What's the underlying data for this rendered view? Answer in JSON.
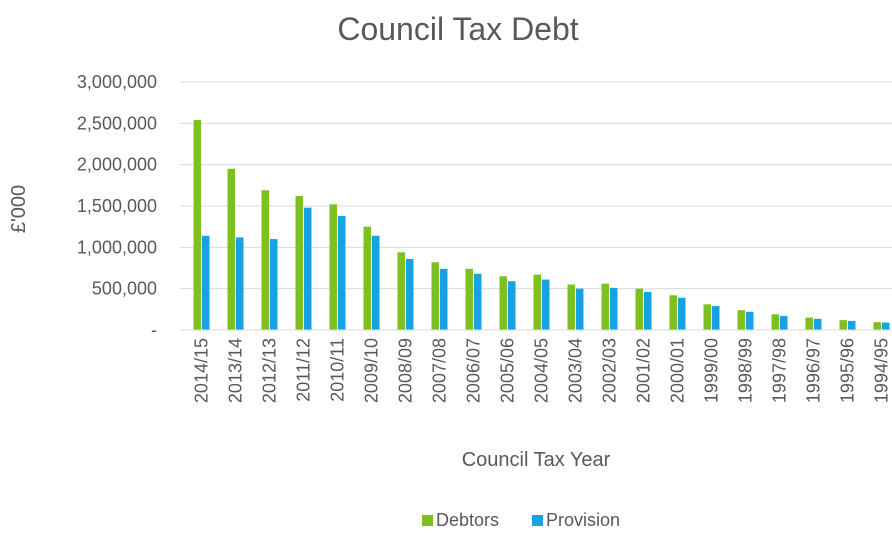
{
  "chart_data": {
    "type": "bar",
    "title": "Council Tax Debt",
    "xlabel": "Council Tax Year",
    "ylabel": "£'000",
    "ylim": [
      0,
      3000000
    ],
    "y_ticks": [
      0,
      500000,
      1000000,
      1500000,
      2000000,
      2500000,
      3000000
    ],
    "y_tick_labels": [
      "-",
      "500,000",
      "1,000,000",
      "1,500,000",
      "2,000,000",
      "2,500,000",
      "3,000,000"
    ],
    "grid": true,
    "legend_position": "bottom",
    "categories": [
      "2014/15",
      "2013/14",
      "2012/13",
      "2011/12",
      "2010/11",
      "2009/10",
      "2008/09",
      "2007/08",
      "2006/07",
      "2005/06",
      "2004/05",
      "2003/04",
      "2002/03",
      "2001/02",
      "2000/01",
      "1999/00",
      "1998/99",
      "1997/98",
      "1996/97",
      "1995/96",
      "1994/95"
    ],
    "series": [
      {
        "name": "Debtors",
        "color": "#7dc11f",
        "values": [
          2540000,
          1950000,
          1690000,
          1620000,
          1520000,
          1250000,
          940000,
          820000,
          740000,
          650000,
          670000,
          550000,
          560000,
          500000,
          420000,
          310000,
          240000,
          190000,
          150000,
          120000,
          95000
        ]
      },
      {
        "name": "Provision",
        "color": "#17a3e3",
        "values": [
          1140000,
          1120000,
          1100000,
          1480000,
          1380000,
          1140000,
          860000,
          740000,
          680000,
          590000,
          610000,
          500000,
          510000,
          460000,
          390000,
          290000,
          220000,
          170000,
          135000,
          110000,
          90000
        ]
      }
    ]
  }
}
